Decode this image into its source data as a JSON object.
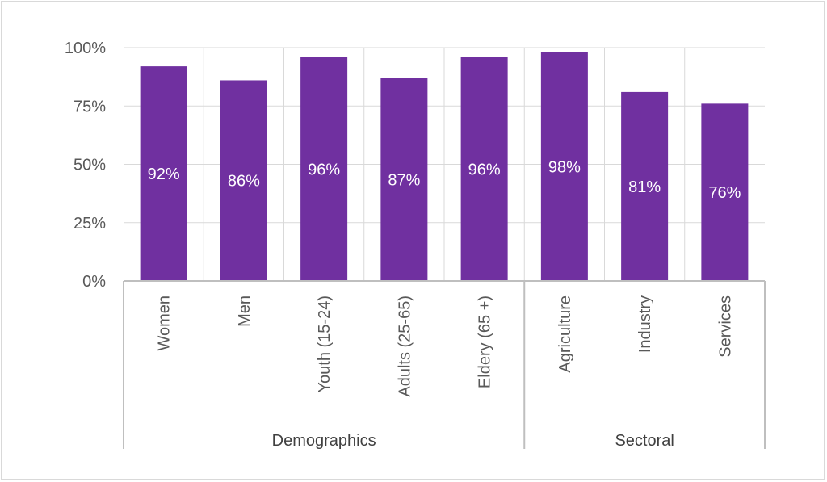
{
  "chart_data": {
    "type": "bar",
    "categories": [
      "Women",
      "Men",
      "Youth (15-24)",
      "Adults (25-65)",
      "Eldery (65 +)",
      "Agriculture",
      "Industry",
      "Services"
    ],
    "values": [
      92,
      86,
      96,
      87,
      96,
      98,
      81,
      76
    ],
    "data_labels": [
      "92%",
      "86%",
      "96%",
      "87%",
      "96%",
      "98%",
      "81%",
      "76%"
    ],
    "groups": [
      {
        "label": "Demographics",
        "count": 5
      },
      {
        "label": "Sectoral",
        "count": 3
      }
    ],
    "y_ticks": [
      "0%",
      "25%",
      "50%",
      "75%",
      "100%"
    ],
    "y_tick_values": [
      0,
      25,
      50,
      75,
      100
    ],
    "ylim": [
      0,
      100
    ],
    "grid": true,
    "colors": {
      "bar": "#7030A0",
      "grid": "#d9d9d9",
      "axis": "#bfbfbf"
    }
  }
}
